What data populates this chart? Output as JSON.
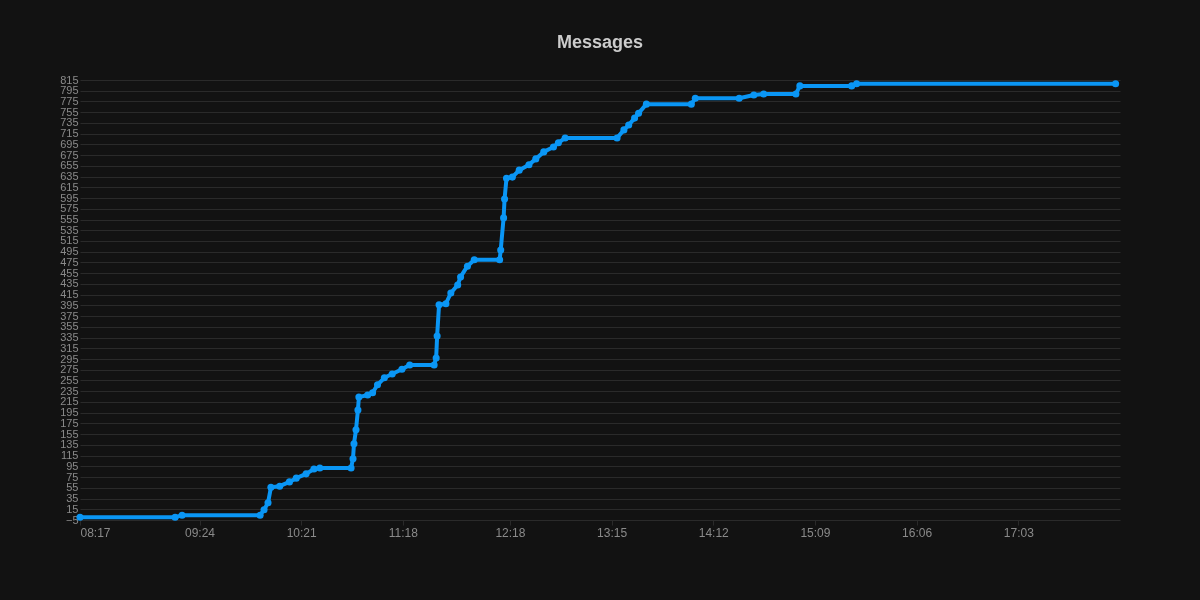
{
  "chart_data": {
    "type": "line",
    "title": "Messages",
    "x": [
      8.2833,
      9.172,
      9.237,
      9.966,
      10.003,
      10.04,
      10.067,
      10.149,
      10.24,
      10.304,
      10.396,
      10.469,
      10.524,
      10.816,
      10.834,
      10.843,
      10.862,
      10.88,
      10.889,
      10.971,
      11.017,
      11.063,
      11.127,
      11.2,
      11.291,
      11.364,
      11.592,
      11.611,
      11.62,
      11.638,
      11.702,
      11.748,
      11.812,
      11.839,
      11.903,
      11.967,
      12.204,
      12.214,
      12.241,
      12.25,
      12.268,
      12.323,
      12.387,
      12.478,
      12.542,
      12.616,
      12.707,
      12.753,
      12.816,
      13.301,
      13.365,
      13.41,
      13.465,
      13.502,
      13.575,
      13.995,
      14.032,
      14.442,
      14.579,
      14.671,
      14.972,
      15.009,
      15.493,
      15.539,
      17.959
    ],
    "series": [
      {
        "color": "#0a96f5",
        "values": [
          0,
          0,
          4,
          4,
          14,
          27,
          56,
          58,
          66,
          73,
          81,
          90,
          92,
          92,
          109,
          137,
          163,
          200,
          224,
          228,
          232,
          247,
          260,
          267,
          276,
          284,
          284,
          297,
          338,
          396,
          398,
          418,
          433,
          448,
          468,
          480,
          480,
          498,
          558,
          593,
          632,
          634,
          647,
          657,
          668,
          681,
          690,
          698,
          707,
          707,
          722,
          731,
          744,
          753,
          770,
          770,
          781,
          781,
          787,
          789,
          789,
          804,
          804,
          808,
          808
        ]
      }
    ],
    "xlim": [
      8.2833,
      18.0
    ],
    "xticks": [
      {
        "value": 8.2833,
        "label": "08:17"
      },
      {
        "value": 9.4,
        "label": "09:24"
      },
      {
        "value": 10.35,
        "label": "10:21"
      },
      {
        "value": 11.3,
        "label": "11:18"
      },
      {
        "value": 12.3,
        "label": "12:18"
      },
      {
        "value": 13.25,
        "label": "13:15"
      },
      {
        "value": 14.2,
        "label": "14:12"
      },
      {
        "value": 15.15,
        "label": "15:09"
      },
      {
        "value": 16.1,
        "label": "16:06"
      },
      {
        "value": 17.05,
        "label": "17:03"
      }
    ],
    "ylim": [
      -5,
      815
    ],
    "yticks": [
      -5,
      15,
      35,
      55,
      75,
      95,
      115,
      135,
      155,
      175,
      195,
      215,
      235,
      255,
      275,
      295,
      315,
      335,
      355,
      375,
      395,
      415,
      435,
      455,
      475,
      495,
      515,
      535,
      555,
      575,
      595,
      615,
      635,
      655,
      675,
      695,
      715,
      735,
      755,
      775,
      795,
      815
    ],
    "grid": "y",
    "marker": "circle",
    "line_style": "solid"
  }
}
